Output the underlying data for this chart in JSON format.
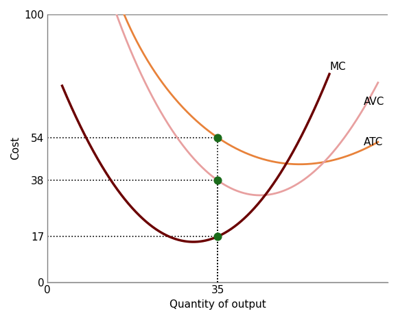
{
  "title": "",
  "xlabel": "Quantity of output",
  "ylabel": "Cost",
  "ylim": [
    0,
    100
  ],
  "xlim": [
    0,
    70
  ],
  "yticks": [
    0,
    17,
    38,
    54,
    100
  ],
  "xticks": [
    0,
    35
  ],
  "marker_x": 35,
  "marker_values": [
    54,
    38,
    17
  ],
  "dotted_lines": true,
  "mc_color": "#6B0000",
  "atc_color": "#E8823A",
  "avc_color": "#E8A0A0",
  "dot_color": "#1a6b1a",
  "background_color": "#ffffff",
  "label_mc": "MC",
  "label_atc": "ATC",
  "label_avc": "AVC",
  "figsize": [
    5.8,
    4.67
  ],
  "dpi": 100
}
